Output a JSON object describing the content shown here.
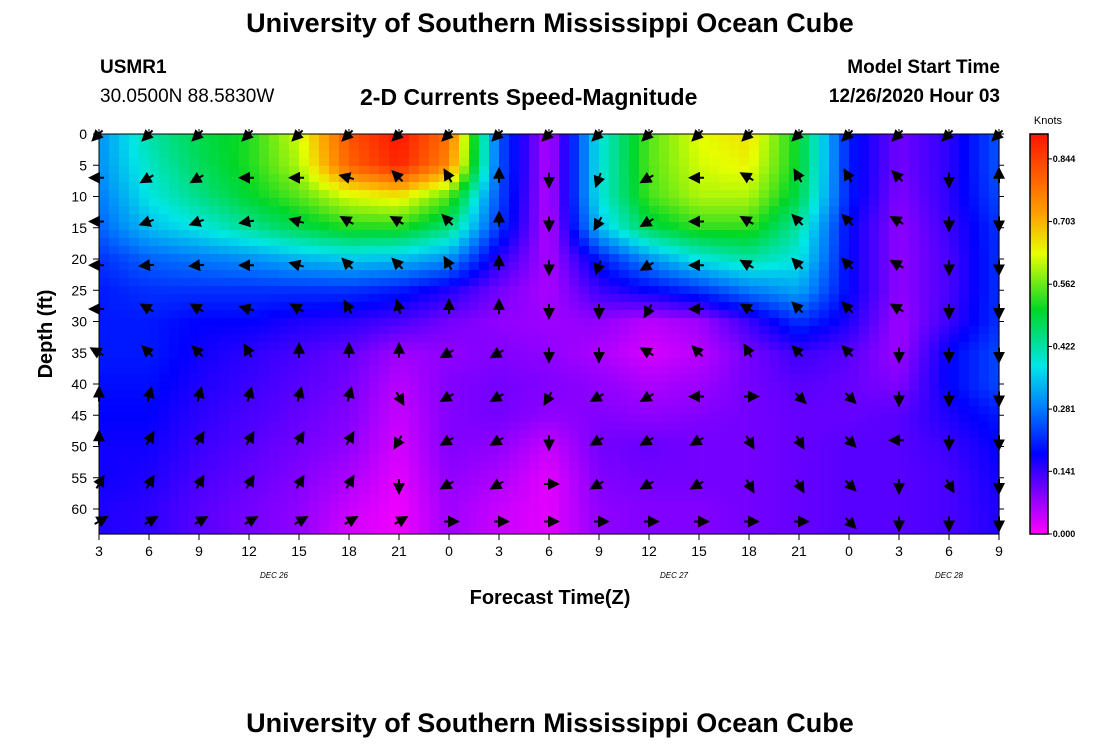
{
  "header": {
    "title_top": "University of Southern Mississippi Ocean Cube",
    "title_bottom": "University of Southern Mississippi Ocean Cube",
    "station_id": "USMR1",
    "station_coords": "30.0500N 88.5830W",
    "plot_title": "2-D Currents Speed-Magnitude",
    "model_start_label": "Model Start Time",
    "model_start_value": "12/26/2020 Hour 03"
  },
  "chart_data": {
    "type": "heatmap",
    "title": "2-D Currents Speed-Magnitude",
    "xlabel": "Forecast Time(Z)",
    "ylabel": "Depth (ft)",
    "x_ticks": [
      "3",
      "6",
      "9",
      "12",
      "15",
      "18",
      "21",
      "0",
      "3",
      "6",
      "9",
      "12",
      "15",
      "18",
      "21",
      "0",
      "3",
      "6",
      "9"
    ],
    "x_dates": [
      {
        "label": "DEC 26",
        "tick_index": 3.5
      },
      {
        "label": "DEC 27",
        "tick_index": 11.5
      },
      {
        "label": "DEC 28",
        "tick_index": 17
      }
    ],
    "y_ticks": [
      "0",
      "5",
      "10",
      "15",
      "20",
      "25",
      "30",
      "35",
      "40",
      "45",
      "50",
      "55",
      "60"
    ],
    "ylim": [
      0,
      64
    ],
    "colorbar": {
      "unit": "Knots",
      "range": [
        0,
        0.9
      ],
      "labels": [
        "0.844",
        "0.703",
        "0.562",
        "0.422",
        "0.281",
        "0.141",
        "0.000"
      ],
      "label_values": [
        0.844,
        0.703,
        0.562,
        0.422,
        0.281,
        0.141,
        0.0
      ]
    },
    "grid_hours": [
      3,
      6,
      9,
      12,
      15,
      18,
      21,
      24,
      27,
      30,
      33,
      36,
      39,
      42,
      45,
      48,
      51,
      54,
      57
    ],
    "grid_depths": [
      0,
      5,
      10,
      15,
      20,
      25,
      30,
      35,
      40,
      45,
      50,
      55,
      60,
      64
    ],
    "speed": [
      [
        0.3,
        0.42,
        0.48,
        0.52,
        0.62,
        0.82,
        0.9,
        0.78,
        0.25,
        0.05,
        0.38,
        0.55,
        0.63,
        0.66,
        0.5,
        0.2,
        0.1,
        0.15,
        0.25
      ],
      [
        0.3,
        0.4,
        0.47,
        0.52,
        0.6,
        0.8,
        0.88,
        0.75,
        0.25,
        0.05,
        0.38,
        0.55,
        0.62,
        0.64,
        0.5,
        0.2,
        0.1,
        0.15,
        0.25
      ],
      [
        0.28,
        0.38,
        0.44,
        0.5,
        0.55,
        0.62,
        0.65,
        0.55,
        0.24,
        0.05,
        0.38,
        0.54,
        0.6,
        0.6,
        0.48,
        0.2,
        0.09,
        0.15,
        0.24
      ],
      [
        0.26,
        0.34,
        0.38,
        0.43,
        0.48,
        0.52,
        0.52,
        0.45,
        0.22,
        0.05,
        0.34,
        0.48,
        0.53,
        0.53,
        0.42,
        0.18,
        0.08,
        0.14,
        0.22
      ],
      [
        0.22,
        0.26,
        0.28,
        0.3,
        0.33,
        0.35,
        0.34,
        0.3,
        0.15,
        0.06,
        0.2,
        0.3,
        0.38,
        0.42,
        0.38,
        0.18,
        0.08,
        0.13,
        0.22
      ],
      [
        0.2,
        0.22,
        0.22,
        0.22,
        0.22,
        0.22,
        0.2,
        0.16,
        0.1,
        0.06,
        0.14,
        0.18,
        0.22,
        0.28,
        0.32,
        0.18,
        0.08,
        0.13,
        0.22
      ],
      [
        0.2,
        0.2,
        0.18,
        0.18,
        0.16,
        0.15,
        0.13,
        0.1,
        0.08,
        0.07,
        0.08,
        0.05,
        0.07,
        0.14,
        0.22,
        0.16,
        0.07,
        0.14,
        0.22
      ],
      [
        0.2,
        0.2,
        0.17,
        0.15,
        0.13,
        0.11,
        0.07,
        0.08,
        0.09,
        0.08,
        0.06,
        0.03,
        0.05,
        0.1,
        0.14,
        0.12,
        0.07,
        0.18,
        0.24
      ],
      [
        0.19,
        0.19,
        0.16,
        0.14,
        0.12,
        0.1,
        0.05,
        0.09,
        0.1,
        0.09,
        0.08,
        0.06,
        0.07,
        0.1,
        0.12,
        0.11,
        0.09,
        0.18,
        0.24
      ],
      [
        0.18,
        0.18,
        0.15,
        0.13,
        0.11,
        0.09,
        0.04,
        0.09,
        0.1,
        0.08,
        0.09,
        0.08,
        0.09,
        0.1,
        0.11,
        0.11,
        0.12,
        0.16,
        0.2
      ],
      [
        0.17,
        0.17,
        0.14,
        0.12,
        0.1,
        0.08,
        0.03,
        0.09,
        0.08,
        0.04,
        0.1,
        0.11,
        0.1,
        0.1,
        0.11,
        0.12,
        0.12,
        0.14,
        0.18
      ],
      [
        0.17,
        0.16,
        0.13,
        0.11,
        0.09,
        0.06,
        0.02,
        0.08,
        0.06,
        0.02,
        0.09,
        0.1,
        0.1,
        0.1,
        0.11,
        0.12,
        0.12,
        0.13,
        0.17
      ],
      [
        0.16,
        0.15,
        0.12,
        0.1,
        0.08,
        0.04,
        0.01,
        0.07,
        0.04,
        0.02,
        0.08,
        0.09,
        0.09,
        0.1,
        0.11,
        0.12,
        0.12,
        0.13,
        0.16
      ],
      [
        0.16,
        0.15,
        0.12,
        0.1,
        0.08,
        0.03,
        0.01,
        0.07,
        0.04,
        0.02,
        0.08,
        0.09,
        0.09,
        0.1,
        0.11,
        0.12,
        0.12,
        0.13,
        0.16
      ]
    ],
    "vector_depths": [
      0,
      7,
      14,
      21,
      28,
      35,
      42,
      49,
      56,
      62
    ],
    "vector_hours": [
      3,
      6,
      9,
      12,
      15,
      18,
      21,
      24,
      27,
      30,
      33,
      36,
      39,
      42,
      45,
      48,
      51,
      54,
      57
    ],
    "vector_dirs": [
      [
        225,
        225,
        225,
        225,
        225,
        225,
        225,
        225,
        225,
        225,
        225,
        225,
        225,
        225,
        225,
        225,
        225,
        225,
        225
      ],
      [
        270,
        240,
        240,
        270,
        270,
        285,
        315,
        330,
        360,
        180,
        200,
        240,
        270,
        300,
        330,
        330,
        315,
        180,
        360
      ],
      [
        270,
        250,
        250,
        260,
        285,
        300,
        300,
        315,
        360,
        180,
        210,
        240,
        270,
        300,
        315,
        315,
        300,
        180,
        180
      ],
      [
        270,
        265,
        265,
        270,
        285,
        315,
        315,
        330,
        360,
        180,
        200,
        240,
        270,
        300,
        315,
        315,
        300,
        180,
        180
      ],
      [
        270,
        300,
        300,
        285,
        300,
        330,
        345,
        360,
        360,
        180,
        180,
        210,
        270,
        300,
        315,
        315,
        300,
        180,
        180
      ],
      [
        300,
        315,
        315,
        330,
        360,
        360,
        360,
        240,
        240,
        180,
        180,
        300,
        315,
        330,
        315,
        315,
        180,
        180,
        180
      ],
      [
        360,
        15,
        15,
        15,
        15,
        15,
        150,
        240,
        240,
        210,
        240,
        240,
        270,
        90,
        135,
        135,
        180,
        180,
        180
      ],
      [
        360,
        30,
        30,
        30,
        30,
        30,
        210,
        240,
        240,
        180,
        240,
        240,
        240,
        150,
        150,
        135,
        270,
        180,
        180
      ],
      [
        30,
        30,
        30,
        30,
        30,
        30,
        180,
        240,
        240,
        90,
        240,
        240,
        240,
        150,
        150,
        135,
        180,
        150,
        180
      ],
      [
        60,
        60,
        60,
        60,
        60,
        60,
        60,
        90,
        90,
        90,
        90,
        90,
        90,
        90,
        90,
        135,
        180,
        180,
        180
      ]
    ]
  }
}
